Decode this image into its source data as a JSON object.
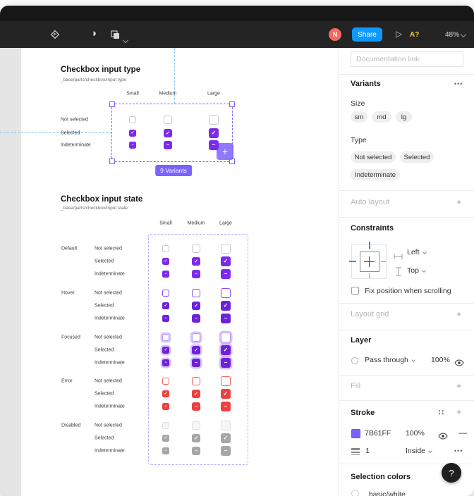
{
  "colors": {
    "accent": "#7B61FF",
    "checkbox_purple": "#7C2BED",
    "error_red": "#EF4040",
    "disabled_gray": "#A6A6A6",
    "share_blue": "#0D99FF",
    "avatar_salmon": "#F26B5E",
    "highlight_yellow": "#FFD233",
    "guide_blue": "#7CC4F8"
  },
  "toolbar": {
    "avatar_initial": "N",
    "share_label": "Share",
    "spellcheck_label": "A?",
    "zoom_label": "48%"
  },
  "canvas": {
    "type_section": {
      "title": "Checkbox input type",
      "path": "_base/parts/checkbox/input type",
      "columns": [
        "Small",
        "Medium",
        "Large"
      ],
      "rows": [
        "Not selected",
        "Selected",
        "Indeterminate"
      ],
      "variants_badge": "9 Variants"
    },
    "state_section": {
      "title": "Checkbox input state",
      "path": "_base/parts/checkbox/input state",
      "columns": [
        "Small",
        "Medium",
        "Large"
      ],
      "groups": [
        "Default",
        "Hover",
        "Focused",
        "Error",
        "Disabled"
      ],
      "rows": [
        "Not selected",
        "Selected",
        "Indeterminate"
      ]
    }
  },
  "panel": {
    "documentation_placeholder": "Documentation link",
    "variants": {
      "title": "Variants",
      "size_label": "Size",
      "sizes": [
        "sm",
        "md",
        "lg"
      ],
      "type_label": "Type",
      "types": [
        "Not selected",
        "Selected",
        "Indeterminate"
      ]
    },
    "auto_layout_title": "Auto layout",
    "constraints": {
      "title": "Constraints",
      "horizontal": "Left",
      "vertical": "Top",
      "fix_label": "Fix position when scrolling"
    },
    "layout_grid_title": "Layout grid",
    "layer": {
      "title": "Layer",
      "blend_mode": "Pass through",
      "opacity": "100%"
    },
    "fill_title": "Fill",
    "stroke": {
      "title": "Stroke",
      "color": "7B61FF",
      "opacity": "100%",
      "weight": "1",
      "align": "Inside"
    },
    "selection_colors": {
      "title": "Selection colors",
      "first_item": "_basic/white"
    },
    "help_label": "?"
  }
}
